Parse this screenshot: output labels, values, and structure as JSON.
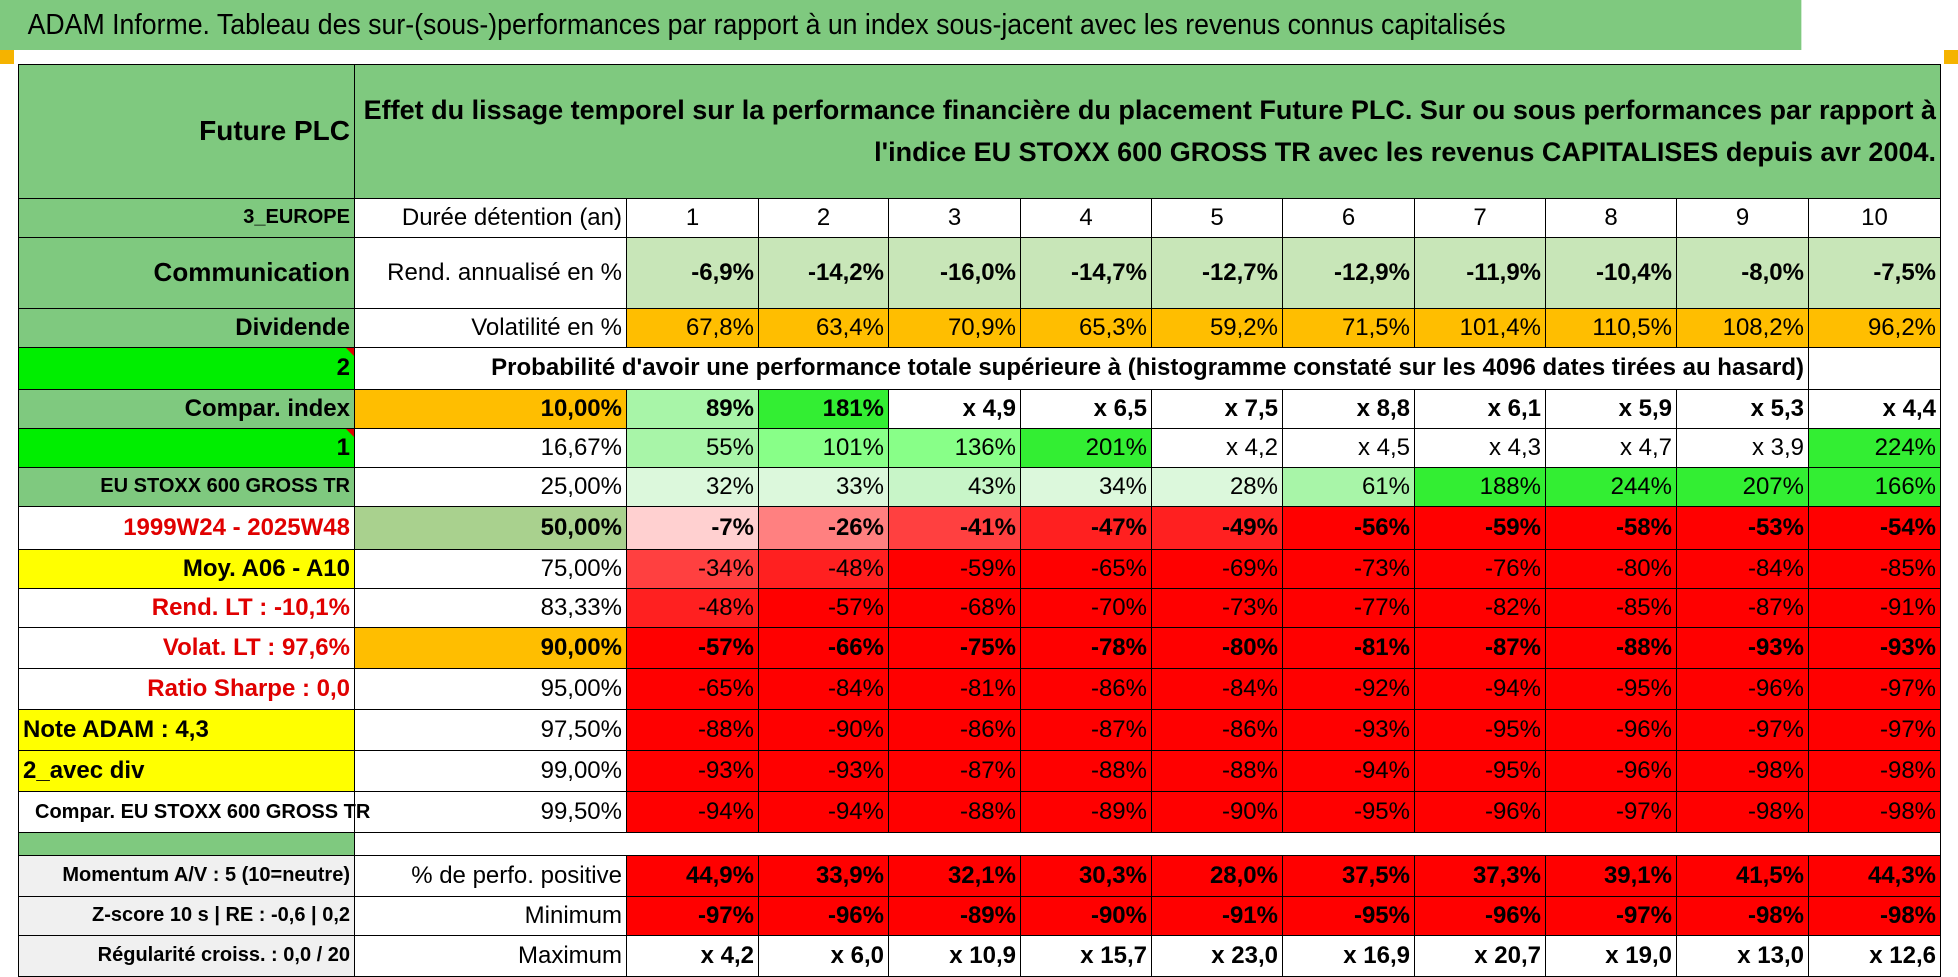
{
  "title": "ADAM Informe. Tableau des sur-(sous-)performances par rapport à un index sous-jacent avec les revenus connus capitalisés",
  "colors": {
    "header_green": "#7fc97f",
    "bright_green": "#00ee00",
    "orange": "#ffbe00",
    "red": "#ff0000",
    "yellow": "#ffff00"
  },
  "left": {
    "fund": "Future PLC",
    "region": "3_EUROPE",
    "sector": "Communication",
    "dividend": "Dividende",
    "number": "2",
    "compar_index": "Compar. index",
    "one": "1",
    "index_name": "EU STOXX 600 GROSS TR",
    "period": "1999W24 - 2025W48",
    "moy": "Moy. A06 - A10",
    "rend_lt": "Rend. LT :    -10,1%",
    "volat_lt": "Volat. LT :    97,6%",
    "sharpe": "Ratio Sharpe :     0,0",
    "note": "Note ADAM : 4,3",
    "avec_div": "2_avec div",
    "compar_full": "Compar. EU STOXX 600 GROSS TR",
    "momentum": "Momentum A/V : 5 (10=neutre)",
    "zscore": "Z-score 10 s | RE : -0,6 | 0,2",
    "regularite": "Régularité croiss. : 0,0 / 20"
  },
  "description": "Effet du lissage temporel sur la performance financière du placement Future PLC. Sur ou sous performances par rapport à l'indice EU STOXX 600 GROSS TR avec les revenus CAPITALISES depuis avr 2004.",
  "row_labels": {
    "duree": "Durée détention (an)",
    "rend": "Rend. annualisé en %",
    "vol": "Volatilité en %",
    "proba": "Probabilité d'avoir une performance totale supérieure à (histogramme constaté sur les 4096 dates tirées au hasard)",
    "pos": "% de perfo. positive",
    "min": "Minimum",
    "max": "Maximum"
  },
  "years": [
    "1",
    "2",
    "3",
    "4",
    "5",
    "6",
    "7",
    "8",
    "9",
    "10"
  ],
  "rend": [
    "-6,9%",
    "-14,2%",
    "-16,0%",
    "-14,7%",
    "-12,7%",
    "-12,9%",
    "-11,9%",
    "-10,4%",
    "-8,0%",
    "-7,5%"
  ],
  "vol": [
    "67,8%",
    "63,4%",
    "70,9%",
    "65,3%",
    "59,2%",
    "71,5%",
    "101,4%",
    "110,5%",
    "108,2%",
    "96,2%"
  ],
  "prob_rows": [
    {
      "t": "10,00%",
      "v": [
        "89%",
        "181%",
        "x 4,9",
        "x 6,5",
        "x 7,5",
        "x 8,8",
        "x 6,1",
        "x 5,9",
        "x 5,3",
        "x 4,4"
      ]
    },
    {
      "t": "16,67%",
      "v": [
        "55%",
        "101%",
        "136%",
        "201%",
        "x 4,2",
        "x 4,5",
        "x 4,3",
        "x 4,7",
        "x 3,9",
        "224%"
      ]
    },
    {
      "t": "25,00%",
      "v": [
        "32%",
        "33%",
        "43%",
        "34%",
        "28%",
        "61%",
        "188%",
        "244%",
        "207%",
        "166%"
      ]
    },
    {
      "t": "50,00%",
      "v": [
        "-7%",
        "-26%",
        "-41%",
        "-47%",
        "-49%",
        "-56%",
        "-59%",
        "-58%",
        "-53%",
        "-54%"
      ]
    },
    {
      "t": "75,00%",
      "v": [
        "-34%",
        "-48%",
        "-59%",
        "-65%",
        "-69%",
        "-73%",
        "-76%",
        "-80%",
        "-84%",
        "-85%"
      ]
    },
    {
      "t": "83,33%",
      "v": [
        "-48%",
        "-57%",
        "-68%",
        "-70%",
        "-73%",
        "-77%",
        "-82%",
        "-85%",
        "-87%",
        "-91%"
      ]
    },
    {
      "t": "90,00%",
      "v": [
        "-57%",
        "-66%",
        "-75%",
        "-78%",
        "-80%",
        "-81%",
        "-87%",
        "-88%",
        "-93%",
        "-93%"
      ]
    },
    {
      "t": "95,00%",
      "v": [
        "-65%",
        "-84%",
        "-81%",
        "-86%",
        "-84%",
        "-92%",
        "-94%",
        "-95%",
        "-96%",
        "-97%"
      ]
    },
    {
      "t": "97,50%",
      "v": [
        "-88%",
        "-90%",
        "-86%",
        "-87%",
        "-86%",
        "-93%",
        "-95%",
        "-96%",
        "-97%",
        "-97%"
      ]
    },
    {
      "t": "99,00%",
      "v": [
        "-93%",
        "-93%",
        "-87%",
        "-88%",
        "-88%",
        "-94%",
        "-95%",
        "-96%",
        "-98%",
        "-98%"
      ]
    },
    {
      "t": "99,50%",
      "v": [
        "-94%",
        "-94%",
        "-88%",
        "-89%",
        "-90%",
        "-95%",
        "-96%",
        "-97%",
        "-98%",
        "-98%"
      ]
    }
  ],
  "pos": [
    "44,9%",
    "33,9%",
    "32,1%",
    "30,3%",
    "28,0%",
    "37,5%",
    "37,3%",
    "39,1%",
    "41,5%",
    "44,3%"
  ],
  "min": [
    "-97%",
    "-96%",
    "-89%",
    "-90%",
    "-91%",
    "-95%",
    "-96%",
    "-97%",
    "-98%",
    "-98%"
  ],
  "max": [
    "x 4,2",
    "x 6,0",
    "x 10,9",
    "x 15,7",
    "x 23,0",
    "x 16,9",
    "x 20,7",
    "x 19,0",
    "x 13,0",
    "x 12,6"
  ]
}
